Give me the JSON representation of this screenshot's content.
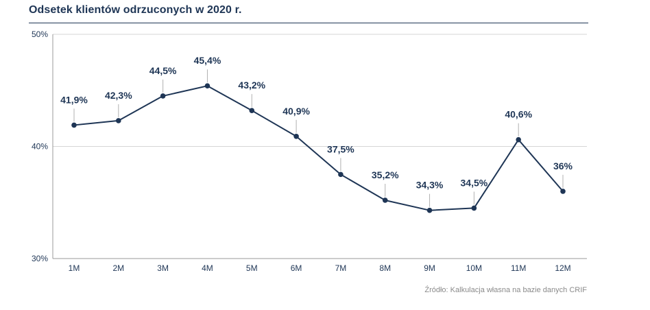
{
  "title": "Odsetek klientów odrzuconych w 2020 r.",
  "source": "Źródło: Kalkulacja własna na bazie danych CRIF",
  "colors": {
    "line": "#1e3555",
    "grid": "#d6d6d6",
    "axis": "#9a9a9a",
    "text": "#1e3555"
  },
  "chart_data": {
    "type": "line",
    "title": "Odsetek klientów odrzuconych w 2020 r.",
    "categories": [
      "1M",
      "2M",
      "3M",
      "4M",
      "5M",
      "6M",
      "7M",
      "8M",
      "9M",
      "10M",
      "11M",
      "12M"
    ],
    "series": [
      {
        "values": [
          41.9,
          42.3,
          44.5,
          45.4,
          43.2,
          40.9,
          37.5,
          35.2,
          34.3,
          34.5,
          40.6,
          36
        ],
        "labels": [
          "41,9%",
          "42,3%",
          "44,5%",
          "45,4%",
          "43,2%",
          "40,9%",
          "37,5%",
          "35,2%",
          "34,3%",
          "34,5%",
          "40,6%",
          "36%"
        ]
      }
    ],
    "ylim": [
      30,
      50
    ],
    "yticks": [
      30,
      40,
      50
    ],
    "ytick_labels": [
      "30%",
      "40%",
      "50%"
    ],
    "xlabel": "",
    "ylabel": "",
    "grid": true
  }
}
